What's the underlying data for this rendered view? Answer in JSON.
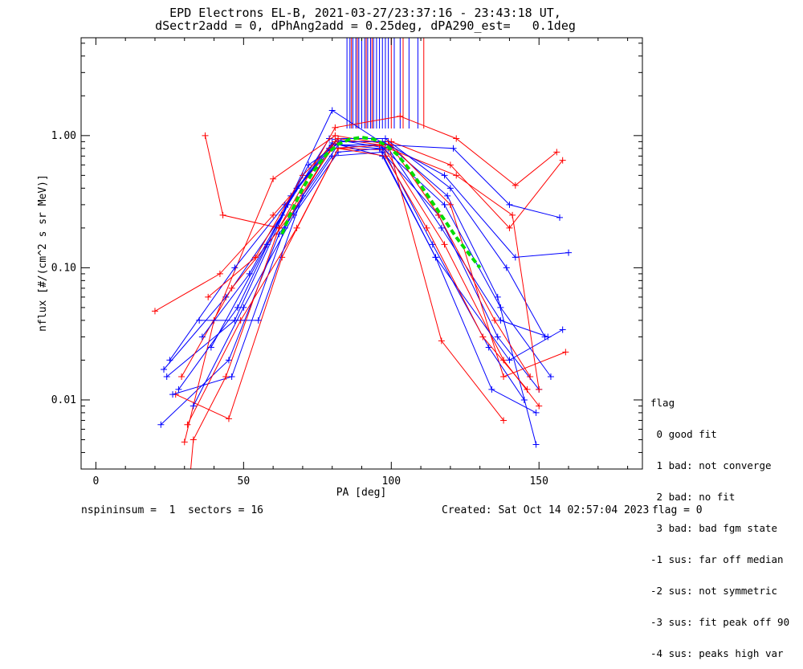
{
  "chart_data": {
    "type": "line",
    "title": "EPD Electrons EL-B, 2021-03-27/23:37:16 - 23:43:18 UT,",
    "subtitle": "dSectr2add = 0, dPhAng2add = 0.25deg, dPA290_est=   0.1deg",
    "xlabel": "PA [deg]",
    "ylabel": "nflux [#/(cm^2 s sr MeV)]",
    "xlim": [
      -5,
      185
    ],
    "ylim": [
      0.003,
      5.5
    ],
    "yscale": "log",
    "x_ticks": [
      0,
      50,
      100,
      150
    ],
    "x_tick_labels": [
      "0",
      "50",
      "100",
      "150"
    ],
    "y_ticks": [
      0.01,
      0.1,
      1.0
    ],
    "y_tick_labels": [
      "0.01",
      "0.10",
      "1.00"
    ],
    "grid": false,
    "series_colors": {
      "a": "#0000ff",
      "b": "#ff0000",
      "fit": "#00dd00"
    },
    "sample_series": [
      {
        "color": "#0000ff",
        "x": [
          22,
          45,
          62,
          80,
          97,
          116,
          136,
          150
        ],
        "y": [
          0.0065,
          0.02,
          0.18,
          0.7,
          0.75,
          0.25,
          0.03,
          0.012
        ]
      },
      {
        "color": "#ff0000",
        "x": [
          20,
          42,
          60,
          82,
          100,
          120,
          140,
          158
        ],
        "y": [
          0.047,
          0.09,
          0.25,
          0.9,
          0.9,
          0.6,
          0.2,
          0.65
        ]
      },
      {
        "color": "#0000ff",
        "x": [
          24,
          47,
          65,
          79,
          99,
          117,
          137,
          153
        ],
        "y": [
          0.015,
          0.04,
          0.3,
          0.95,
          0.8,
          0.2,
          0.04,
          0.03
        ]
      },
      {
        "color": "#ff0000",
        "x": [
          27,
          45,
          63,
          82,
          98,
          118,
          138,
          150
        ],
        "y": [
          0.011,
          0.0072,
          0.12,
          0.8,
          0.78,
          0.15,
          0.02,
          0.009
        ]
      },
      {
        "color": "#0000ff",
        "x": [
          23,
          44,
          63,
          80,
          98,
          121,
          140,
          157
        ],
        "y": [
          0.017,
          0.06,
          0.25,
          1.55,
          0.85,
          0.8,
          0.3,
          0.24
        ]
      },
      {
        "color": "#ff0000",
        "x": [
          37,
          43,
          62,
          81,
          103,
          122,
          142,
          156
        ],
        "y": [
          1.0,
          0.25,
          0.2,
          1.15,
          1.4,
          0.95,
          0.42,
          0.75
        ]
      },
      {
        "color": "#0000ff",
        "x": [
          26,
          46,
          64,
          79,
          99,
          119,
          136,
          149
        ],
        "y": [
          0.011,
          0.015,
          0.2,
          0.8,
          0.85,
          0.35,
          0.06,
          0.0046
        ]
      },
      {
        "color": "#ff0000",
        "x": [
          30,
          40,
          60,
          81,
          100,
          120,
          138,
          159
        ],
        "y": [
          0.0048,
          0.04,
          0.47,
          1.0,
          0.85,
          0.3,
          0.015,
          0.023
        ]
      },
      {
        "color": "#0000ff",
        "x": [
          28,
          48,
          66,
          80,
          97,
          115,
          140,
          158
        ],
        "y": [
          0.012,
          0.05,
          0.35,
          0.88,
          0.7,
          0.12,
          0.02,
          0.034
        ]
      },
      {
        "color": "#0000ff",
        "x": [
          33,
          50,
          67,
          82,
          97,
          114,
          133,
          145
        ],
        "y": [
          0.009,
          0.05,
          0.25,
          0.75,
          0.8,
          0.15,
          0.025,
          0.01
        ]
      },
      {
        "color": "#ff0000",
        "x": [
          31,
          49,
          68,
          82,
          98,
          112,
          131,
          146
        ],
        "y": [
          0.0065,
          0.04,
          0.2,
          0.8,
          0.7,
          0.2,
          0.03,
          0.012
        ]
      },
      {
        "color": "#0000ff",
        "x": [
          25,
          47,
          64,
          80,
          96,
          118,
          137,
          154
        ],
        "y": [
          0.02,
          0.1,
          0.3,
          0.85,
          0.85,
          0.3,
          0.05,
          0.015
        ]
      },
      {
        "color": "#ff0000",
        "x": [
          29,
          46,
          66,
          81,
          99,
          116,
          135,
          147
        ],
        "y": [
          0.015,
          0.07,
          0.25,
          0.9,
          0.9,
          0.25,
          0.04,
          0.015
        ]
      },
      {
        "color": "#0000ff",
        "x": [
          36,
          52,
          68,
          82,
          98,
          120,
          139,
          152
        ],
        "y": [
          0.03,
          0.09,
          0.4,
          0.95,
          0.95,
          0.4,
          0.1,
          0.03
        ]
      },
      {
        "color": "#0000ff",
        "x": [
          35,
          55,
          70,
          82,
          96,
          115,
          134,
          149
        ],
        "y": [
          0.04,
          0.04,
          0.35,
          0.85,
          0.8,
          0.12,
          0.012,
          0.008
        ]
      },
      {
        "color": "#ff0000",
        "x": [
          38,
          54,
          70,
          82,
          96,
          122,
          141,
          150
        ],
        "y": [
          0.06,
          0.12,
          0.5,
          0.95,
          0.85,
          0.5,
          0.25,
          0.012
        ]
      },
      {
        "color": "#ff0000",
        "x": [
          32,
          33,
          44,
          62,
          80,
          99,
          117,
          138
        ],
        "y": [
          0.0028,
          0.005,
          0.015,
          0.2,
          0.8,
          0.85,
          0.028,
          0.007
        ]
      },
      {
        "color": "#0000ff",
        "x": [
          39,
          58,
          72,
          83,
          97,
          118,
          142,
          160
        ],
        "y": [
          0.025,
          0.15,
          0.6,
          0.9,
          0.9,
          0.5,
          0.12,
          0.13
        ]
      }
    ],
    "fit_curve": {
      "name": "",
      "color": "#00dd00",
      "x": [
        63,
        66,
        70,
        74,
        78,
        82,
        86,
        90,
        94,
        98,
        102,
        106,
        110,
        114,
        118,
        122,
        126,
        130
      ],
      "y": [
        0.18,
        0.26,
        0.4,
        0.55,
        0.72,
        0.86,
        0.94,
        0.97,
        0.94,
        0.85,
        0.72,
        0.56,
        0.42,
        0.31,
        0.23,
        0.17,
        0.13,
        0.1
      ]
    },
    "vertical_markers": [
      {
        "color": "#0000ff",
        "x": [
          85,
          86,
          87,
          88,
          89,
          90,
          91,
          92,
          93,
          94,
          95,
          96,
          97,
          98,
          99,
          101,
          103,
          106,
          109
        ]
      },
      {
        "color": "#ff0000",
        "x": [
          86.5,
          88.5,
          91.5,
          93.5,
          100,
          104,
          111
        ]
      }
    ]
  },
  "plot": {
    "title_line1": "EPD Electrons EL-B, 2021-03-27/23:37:16 - 23:43:18 UT,",
    "title_line2": "dSectr2add = 0, dPhAng2add = 0.25deg, dPA290_est=   0.1deg"
  },
  "footer": {
    "left": "nspininsum =  1  sectors = 16",
    "created": "Created: Sat Oct 14 02:57:04 2023",
    "flag": "flag = 0"
  },
  "flag_legend": {
    "title": "flag",
    "entries": [
      " 0 good fit",
      " 1 bad: not converge",
      " 2 bad: no fit",
      " 3 bad: bad fgm state",
      "-1 sus: far off median",
      "-2 sus: not symmetric",
      "-3 sus: fit peak off 90",
      "-4 sus: peaks high var"
    ]
  }
}
